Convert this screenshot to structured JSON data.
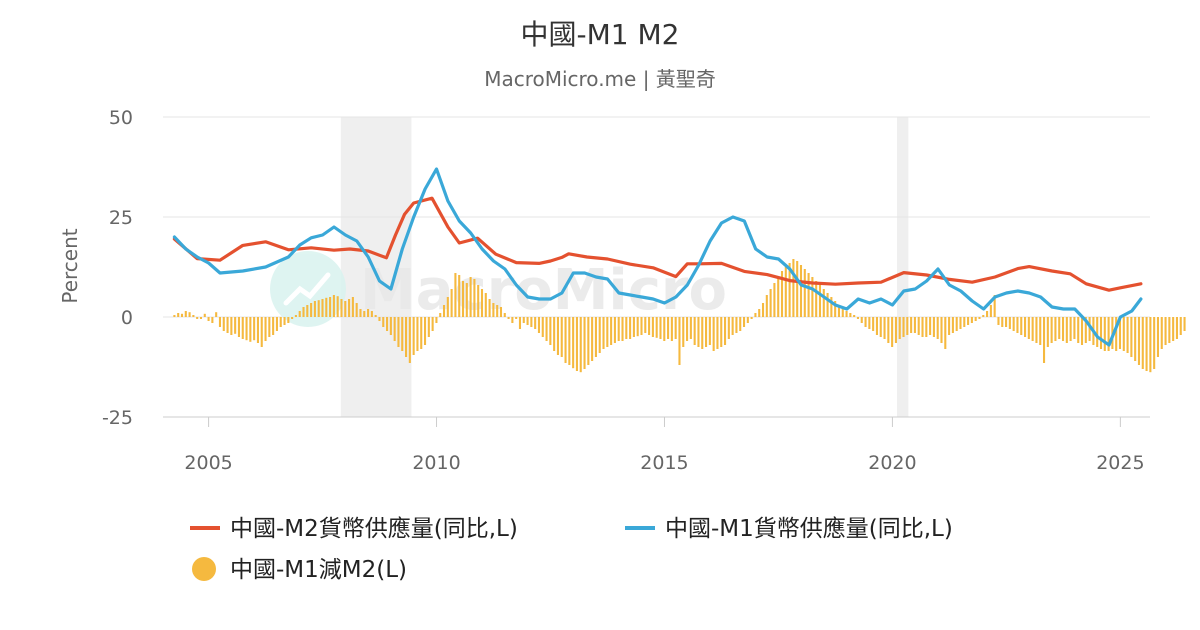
{
  "chart_data": {
    "type": "line",
    "title": "中國-M1 M2",
    "subtitle": "MacroMicro.me | 黃聖奇",
    "watermark": "MacroMicro",
    "ylabel": "Percent",
    "ylim": [
      -25,
      50
    ],
    "y_ticks": [
      "50",
      "25",
      "0",
      "-25"
    ],
    "x_ticks": [
      "2005",
      "2010",
      "2015",
      "2020",
      "2025"
    ],
    "xlim": [
      2004.0,
      2025.65
    ],
    "grid": true,
    "legend_position": "bottom",
    "shaded_periods": [
      [
        2007.9,
        2009.45
      ],
      [
        2020.1,
        2020.35
      ]
    ],
    "colors": {
      "m2": "#e4512f",
      "m1": "#3aa8d8",
      "diff": "#f5b93f",
      "shade": "#efefef"
    },
    "series": [
      {
        "key": "m2",
        "name": "中國-M2貨幣供應量(同比,L)",
        "type": "line",
        "x": [
          2004.25,
          2004.75,
          2005.25,
          2005.75,
          2006.25,
          2006.75,
          2007.25,
          2007.75,
          2008.1,
          2008.5,
          2008.9,
          2009.1,
          2009.3,
          2009.5,
          2009.9,
          2010.25,
          2010.5,
          2010.9,
          2011.3,
          2011.75,
          2012.25,
          2012.5,
          2012.75,
          2012.9,
          2013.3,
          2013.75,
          2014.25,
          2014.75,
          2015.25,
          2015.5,
          2015.75,
          2016.25,
          2016.75,
          2017.25,
          2017.75,
          2018.25,
          2018.75,
          2019.25,
          2019.75,
          2020.25,
          2020.75,
          2021.25,
          2021.75,
          2022.25,
          2022.75,
          2023.0,
          2023.5,
          2023.9,
          2024.25,
          2024.75,
          2025.0,
          2025.45
        ],
        "values": [
          19.5,
          14.6,
          14.2,
          17.9,
          18.8,
          16.8,
          17.3,
          16.7,
          17.0,
          16.5,
          14.8,
          20.5,
          25.7,
          28.5,
          29.7,
          22.5,
          18.5,
          19.7,
          15.7,
          13.6,
          13.4,
          14.0,
          14.9,
          15.8,
          15.0,
          14.5,
          13.2,
          12.3,
          10.1,
          13.3,
          13.3,
          13.4,
          11.4,
          10.6,
          9.1,
          8.5,
          8.2,
          8.5,
          8.7,
          11.1,
          10.5,
          9.4,
          8.7,
          10.0,
          12.1,
          12.6,
          11.5,
          10.8,
          8.3,
          6.7,
          7.3,
          8.3
        ]
      },
      {
        "key": "m1",
        "name": "中國-M1貨幣供應量(同比,L)",
        "type": "line",
        "x": [
          2004.25,
          2004.5,
          2004.75,
          2005.0,
          2005.25,
          2005.75,
          2006.25,
          2006.75,
          2007.0,
          2007.25,
          2007.5,
          2007.75,
          2008.0,
          2008.25,
          2008.5,
          2008.75,
          2009.0,
          2009.25,
          2009.5,
          2009.75,
          2010.0,
          2010.25,
          2010.5,
          2010.75,
          2011.0,
          2011.25,
          2011.5,
          2011.75,
          2012.0,
          2012.25,
          2012.5,
          2012.75,
          2013.0,
          2013.25,
          2013.5,
          2013.75,
          2014.0,
          2014.25,
          2014.5,
          2014.75,
          2015.0,
          2015.25,
          2015.5,
          2015.75,
          2016.0,
          2016.25,
          2016.5,
          2016.75,
          2017.0,
          2017.25,
          2017.5,
          2017.75,
          2018.0,
          2018.25,
          2018.5,
          2018.75,
          2019.0,
          2019.25,
          2019.5,
          2019.75,
          2020.0,
          2020.25,
          2020.5,
          2020.75,
          2021.0,
          2021.25,
          2021.5,
          2021.75,
          2022.0,
          2022.25,
          2022.5,
          2022.75,
          2023.0,
          2023.25,
          2023.5,
          2023.75,
          2024.0,
          2024.25,
          2024.5,
          2024.75,
          2025.0,
          2025.25,
          2025.45
        ],
        "values": [
          20.0,
          17.0,
          15.0,
          13.5,
          11.0,
          11.5,
          12.5,
          15.0,
          18.0,
          19.8,
          20.5,
          22.5,
          20.5,
          19.0,
          15.0,
          9.0,
          7.0,
          17.0,
          25.0,
          32.0,
          37.0,
          29.0,
          24.0,
          21.0,
          17.0,
          14.0,
          12.0,
          8.0,
          5.0,
          4.5,
          4.5,
          6.0,
          11.0,
          11.0,
          10.0,
          9.5,
          6.0,
          5.5,
          5.0,
          4.5,
          3.5,
          5.0,
          8.0,
          13.0,
          19.0,
          23.5,
          25.0,
          24.0,
          17.0,
          15.0,
          14.5,
          12.0,
          8.0,
          7.0,
          5.0,
          3.0,
          2.0,
          4.5,
          3.5,
          4.5,
          3.0,
          6.5,
          7.0,
          9.0,
          12.0,
          8.0,
          6.5,
          4.0,
          2.0,
          5.0,
          6.0,
          6.5,
          6.0,
          5.0,
          2.5,
          2.0,
          2.0,
          -1.0,
          -5.0,
          -7.0,
          0.0,
          1.5,
          4.5
        ]
      },
      {
        "key": "diff",
        "name": "中國-M1減M2(L)",
        "type": "bar",
        "x_start": 2004.25,
        "x_step": 0.0833,
        "values": [
          0.5,
          1.0,
          0.8,
          1.5,
          1.2,
          0.5,
          -0.5,
          -0.5,
          0.8,
          -1.0,
          -1.5,
          1.2,
          -2.5,
          -3.5,
          -4.0,
          -4.5,
          -4.2,
          -5.0,
          -5.5,
          -5.8,
          -6.2,
          -5.8,
          -6.5,
          -7.5,
          -6.0,
          -5.0,
          -4.5,
          -3.5,
          -2.5,
          -2.0,
          -1.5,
          -0.5,
          0.5,
          1.5,
          2.5,
          3.0,
          3.5,
          4.0,
          4.2,
          4.5,
          4.8,
          5.0,
          5.5,
          5.2,
          4.5,
          4.0,
          4.5,
          5.0,
          3.5,
          2.0,
          1.5,
          2.0,
          1.5,
          0.5,
          -1.0,
          -2.5,
          -3.5,
          -4.5,
          -6.0,
          -7.5,
          -8.5,
          -10.0,
          -11.5,
          -9.5,
          -8.5,
          -8.0,
          -7.0,
          -5.0,
          -3.5,
          -1.5,
          1.0,
          3.0,
          5.0,
          7.0,
          11.0,
          10.5,
          9.0,
          8.5,
          10.0,
          9.5,
          8.0,
          7.0,
          6.0,
          4.5,
          3.5,
          3.0,
          2.5,
          1.0,
          -0.5,
          -1.5,
          -0.5,
          -3.0,
          -1.5,
          -2.0,
          -2.5,
          -3.0,
          -4.0,
          -5.0,
          -6.0,
          -7.0,
          -8.5,
          -9.5,
          -10.0,
          -11.5,
          -12.0,
          -12.8,
          -13.5,
          -13.8,
          -13.0,
          -12.0,
          -11.0,
          -10.0,
          -9.0,
          -8.0,
          -7.5,
          -7.0,
          -6.5,
          -6.0,
          -6.0,
          -5.5,
          -5.5,
          -5.0,
          -4.8,
          -4.5,
          -4.0,
          -4.5,
          -5.0,
          -5.2,
          -5.5,
          -6.0,
          -5.5,
          -6.0,
          -5.5,
          -12.0,
          -7.5,
          -6.0,
          -5.5,
          -7.0,
          -7.5,
          -8.0,
          -7.5,
          -7.0,
          -8.5,
          -8.0,
          -7.5,
          -7.0,
          -5.5,
          -4.5,
          -4.0,
          -3.5,
          -2.5,
          -1.5,
          -0.5,
          1.0,
          2.0,
          3.5,
          5.5,
          7.0,
          8.5,
          10.0,
          11.5,
          12.5,
          13.5,
          14.5,
          14.0,
          13.0,
          12.0,
          11.0,
          10.0,
          9.0,
          8.0,
          7.0,
          6.0,
          5.0,
          4.0,
          3.0,
          2.0,
          1.5,
          1.0,
          0.5,
          -0.5,
          -1.5,
          -2.5,
          -3.0,
          -3.5,
          -4.5,
          -5.0,
          -5.5,
          -6.5,
          -7.5,
          -6.5,
          -5.5,
          -5.0,
          -4.5,
          -4.0,
          -4.0,
          -4.5,
          -5.0,
          -5.0,
          -4.5,
          -5.0,
          -5.5,
          -6.5,
          -8.0,
          -4.5,
          -4.0,
          -3.5,
          -3.0,
          -2.5,
          -2.0,
          -1.5,
          -1.0,
          -0.5,
          0.5,
          1.5,
          3.0,
          5.5,
          -2.0,
          -2.5,
          -2.5,
          -3.0,
          -3.5,
          -4.0,
          -4.5,
          -5.0,
          -5.5,
          -6.0,
          -6.5,
          -7.0,
          -11.5,
          -7.5,
          -6.5,
          -6.0,
          -5.5,
          -6.0,
          -6.5,
          -6.0,
          -5.5,
          -6.5,
          -7.0,
          -6.5,
          -6.0,
          -7.0,
          -7.5,
          -8.0,
          -8.5,
          -8.5,
          -8.0,
          -8.5,
          -8.0,
          -8.5,
          -9.0,
          -10.0,
          -11.0,
          -12.0,
          -13.0,
          -13.5,
          -13.8,
          -13.0,
          -10.0,
          -8.0,
          -7.0,
          -6.5,
          -6.0,
          -5.5,
          -4.5,
          -3.5
        ]
      }
    ]
  }
}
